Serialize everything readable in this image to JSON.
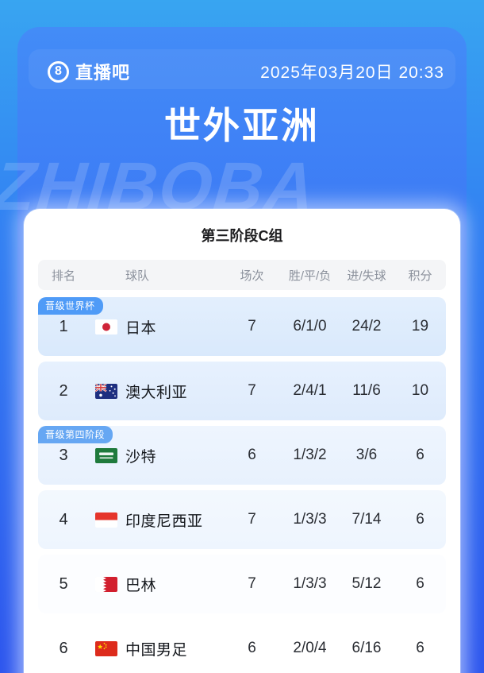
{
  "header": {
    "logo_badge": "8",
    "logo_text": "直播吧",
    "datetime": "2025年03月20日 20:33"
  },
  "title": "世外亚洲",
  "watermark": "ZHIBOBA",
  "card": {
    "title": "第三阶段C组",
    "columns": [
      "排名",
      "球队",
      "场次",
      "胜/平/负",
      "进/失球",
      "积分"
    ],
    "rows": [
      {
        "rank": "1",
        "badge": "晋级世界杯",
        "flag": "japan",
        "team": "日本",
        "matches": "7",
        "wdl": "6/1/0",
        "goals": "24/2",
        "points": "19"
      },
      {
        "rank": "2",
        "flag": "australia",
        "team": "澳大利亚",
        "matches": "7",
        "wdl": "2/4/1",
        "goals": "11/6",
        "points": "10"
      },
      {
        "rank": "3",
        "badge": "晋级第四阶段",
        "flag": "saudi-arabia",
        "team": "沙特",
        "matches": "6",
        "wdl": "1/3/2",
        "goals": "3/6",
        "points": "6"
      },
      {
        "rank": "4",
        "flag": "indonesia",
        "team": "印度尼西亚",
        "matches": "7",
        "wdl": "1/3/3",
        "goals": "7/14",
        "points": "6"
      },
      {
        "rank": "5",
        "flag": "bahrain",
        "team": "巴林",
        "matches": "7",
        "wdl": "1/3/3",
        "goals": "5/12",
        "points": "6"
      },
      {
        "rank": "6",
        "flag": "china",
        "team": "中国男足",
        "matches": "6",
        "wdl": "2/0/4",
        "goals": "6/16",
        "points": "6"
      }
    ]
  },
  "colors": {
    "background_top": "#38a5f1",
    "background_bottom": "#2c55ee",
    "panel_top": "#438cf7",
    "panel_bottom": "#2f57ef",
    "card_background": "#ffffff",
    "badge_world_cup": "#4f9bf7",
    "badge_fourth_stage": "#66a7f3",
    "row_highlight": "#d9e9fc",
    "header_row_background": "#f4f5f7",
    "header_text": "#8b919c",
    "body_text": "#2a2d33"
  }
}
